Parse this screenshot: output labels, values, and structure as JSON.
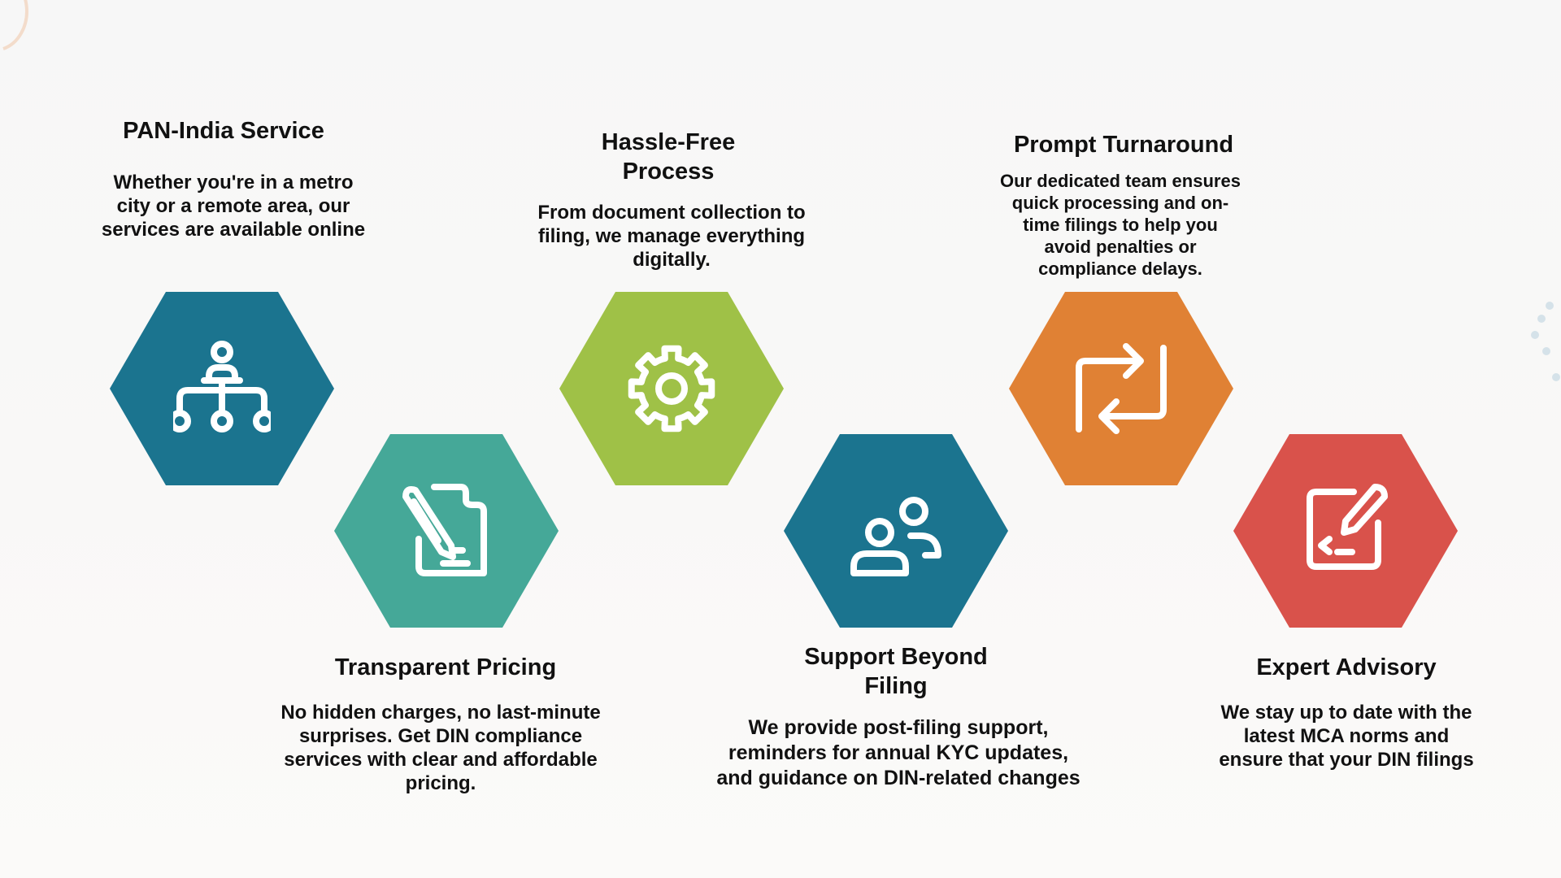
{
  "colors": {
    "teal_blue": "#1b748f",
    "green_teal": "#45a898",
    "lime": "#9fc147",
    "orange": "#e08134",
    "red": "#d9524b",
    "icon_stroke": "#ffffff"
  },
  "features": [
    {
      "title": "PAN-India Service",
      "description": "Whether you're in a metro city or a remote area, our services are available online",
      "icon": "hierarchy-icon",
      "color": "#1b748f"
    },
    {
      "title": "Transparent Pricing",
      "description": "No hidden charges, no last-minute surprises. Get DIN compliance services with clear and affordable pricing.",
      "icon": "document-edit-icon",
      "color": "#45a898"
    },
    {
      "title": "Hassle-Free Process",
      "description": "From document collection to filing, we manage everything digitally.",
      "icon": "gear-icon",
      "color": "#9fc147"
    },
    {
      "title": "Support Beyond Filing",
      "description": "We provide post-filing support, reminders for annual KYC updates, and guidance on DIN-related changes",
      "icon": "users-icon",
      "color": "#1b748f"
    },
    {
      "title": "Prompt Turnaround",
      "description": "Our dedicated team ensures quick processing and on-time filings to help you avoid penalties or compliance delays.",
      "icon": "repeat-arrows-icon",
      "color": "#e08134"
    },
    {
      "title": "Expert Advisory",
      "description": "We stay up to date with the latest MCA norms and ensure that your DIN filings",
      "icon": "edit-square-icon",
      "color": "#d9524b"
    }
  ]
}
